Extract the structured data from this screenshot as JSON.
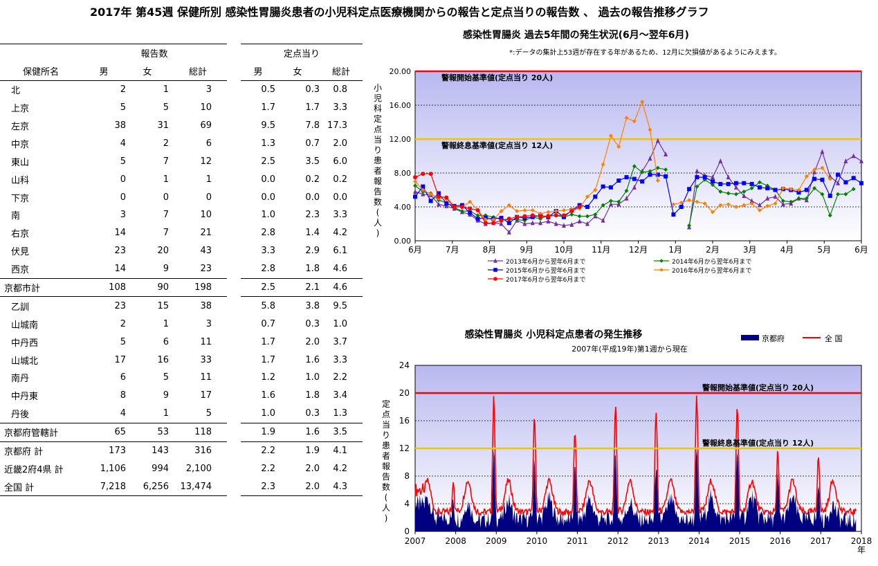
{
  "page_title": "2017年 第45週 保健所別 感染性胃腸炎患者の小児科定点医療機関からの報告と定点当りの報告数 、 過去の報告推移グラフ",
  "table": {
    "group_headers": [
      "報告数",
      "定点当り"
    ],
    "columns": [
      "保健所名",
      "男",
      "女",
      "総計",
      "男",
      "女",
      "総計"
    ],
    "rows": [
      {
        "name": "北",
        "indent": true,
        "vals": [
          "2",
          "1",
          "3",
          "0.5",
          "0.3",
          "0.8"
        ]
      },
      {
        "name": "上京",
        "indent": true,
        "vals": [
          "5",
          "5",
          "10",
          "1.7",
          "1.7",
          "3.3"
        ]
      },
      {
        "name": "左京",
        "indent": true,
        "vals": [
          "38",
          "31",
          "69",
          "9.5",
          "7.8",
          "17.3"
        ]
      },
      {
        "name": "中京",
        "indent": true,
        "vals": [
          "4",
          "2",
          "6",
          "1.3",
          "0.7",
          "2.0"
        ]
      },
      {
        "name": "東山",
        "indent": true,
        "vals": [
          "5",
          "7",
          "12",
          "2.5",
          "3.5",
          "6.0"
        ]
      },
      {
        "name": "山科",
        "indent": true,
        "vals": [
          "0",
          "1",
          "1",
          "0.0",
          "0.2",
          "0.2"
        ]
      },
      {
        "name": "下京",
        "indent": true,
        "vals": [
          "0",
          "0",
          "0",
          "0.0",
          "0.0",
          "0.0"
        ]
      },
      {
        "name": "南",
        "indent": true,
        "vals": [
          "3",
          "7",
          "10",
          "1.0",
          "2.3",
          "3.3"
        ]
      },
      {
        "name": "右京",
        "indent": true,
        "vals": [
          "14",
          "7",
          "21",
          "2.8",
          "1.4",
          "4.2"
        ]
      },
      {
        "name": "伏見",
        "indent": true,
        "vals": [
          "23",
          "20",
          "43",
          "3.3",
          "2.9",
          "6.1"
        ]
      },
      {
        "name": "西京",
        "indent": true,
        "vals": [
          "14",
          "9",
          "23",
          "2.8",
          "1.8",
          "4.6"
        ]
      },
      {
        "name": "京都市計",
        "indent": false,
        "sep": true,
        "vals": [
          "108",
          "90",
          "198",
          "2.5",
          "2.1",
          "4.6"
        ]
      },
      {
        "name": "乙訓",
        "indent": true,
        "sep": true,
        "vals": [
          "23",
          "15",
          "38",
          "5.8",
          "3.8",
          "9.5"
        ]
      },
      {
        "name": "山城南",
        "indent": true,
        "vals": [
          "2",
          "1",
          "3",
          "0.7",
          "0.3",
          "1.0"
        ]
      },
      {
        "name": "中丹西",
        "indent": true,
        "vals": [
          "5",
          "6",
          "11",
          "1.7",
          "2.0",
          "3.7"
        ]
      },
      {
        "name": "山城北",
        "indent": true,
        "vals": [
          "17",
          "16",
          "33",
          "1.7",
          "1.6",
          "3.3"
        ]
      },
      {
        "name": "南丹",
        "indent": true,
        "vals": [
          "6",
          "5",
          "11",
          "1.2",
          "1.0",
          "2.2"
        ]
      },
      {
        "name": "中丹東",
        "indent": true,
        "vals": [
          "8",
          "9",
          "17",
          "1.6",
          "1.8",
          "3.4"
        ]
      },
      {
        "name": "丹後",
        "indent": true,
        "vals": [
          "4",
          "1",
          "5",
          "1.0",
          "0.3",
          "1.3"
        ]
      },
      {
        "name": "京都府管轄計",
        "indent": false,
        "sep": true,
        "vals": [
          "65",
          "53",
          "118",
          "1.9",
          "1.6",
          "3.5"
        ]
      },
      {
        "name": "京都府 計",
        "indent": false,
        "sep": true,
        "vals": [
          "173",
          "143",
          "316",
          "2.2",
          "1.9",
          "4.1"
        ]
      },
      {
        "name": "近畿2府4県 計",
        "indent": false,
        "vals": [
          "1,106",
          "994",
          "2,100",
          "2.2",
          "2.0",
          "4.2"
        ]
      },
      {
        "name": "全国 計",
        "indent": false,
        "vals": [
          "7,218",
          "6,256",
          "13,474",
          "2.3",
          "2.0",
          "4.3"
        ]
      }
    ]
  },
  "chart_data": [
    {
      "type": "line",
      "title": "感染性胃腸炎 過去5年間の発生状況(6月～翌年6月)",
      "note": "*:データの集計上53週が存在する年があるため、12月に欠損値があるようにみえます。",
      "ylabel": "小児科定点当り患者報告数(人)",
      "ylim": [
        0,
        20
      ],
      "yticks": [
        "0.00",
        "4.00",
        "8.00",
        "12.00",
        "16.00",
        "20.00"
      ],
      "x_tick_labels": [
        "6月",
        "7月",
        "8月",
        "9月",
        "10月",
        "11月",
        "12月",
        "1月",
        "2月",
        "3月",
        "4月",
        "5月",
        "6月"
      ],
      "threshold_lines": [
        {
          "label": "警報開始基準値(定点当り 20人)",
          "value": 20,
          "color": "#ff0000"
        },
        {
          "label": "警報終息基準値(定点当り 12人)",
          "value": 12,
          "color": "#e8c800"
        }
      ],
      "series": [
        {
          "name": "2013年6月から翌年6月まで",
          "color": "#7030a0",
          "marker": "triangle",
          "values": [
            5.8,
            5.5,
            5.4,
            4.3,
            4.1,
            3.8,
            3.4,
            3.1,
            2.4,
            2.0,
            2.1,
            2.0,
            1.0,
            2.4,
            2.0,
            2.1,
            2.1,
            2.3,
            2.0,
            1.8,
            1.9,
            2.3,
            2.0,
            2.9,
            2.4,
            4.3,
            4.3,
            5.0,
            6.3,
            8.2,
            9.7,
            11.8,
            10.2,
            null,
            null,
            1.6,
            8.2,
            7.7,
            7.5,
            9.4,
            7.5,
            6.3,
            5.3,
            4.7,
            4.2,
            5.0,
            5.2,
            4.3,
            4.4,
            5.0,
            4.8,
            8.1,
            10.5,
            7.6,
            6.8,
            9.4,
            10.0,
            9.4
          ]
        },
        {
          "name": "2014年6月から翌年6月まで",
          "color": "#008000",
          "marker": "diamond",
          "values": [
            6.5,
            5.8,
            5.6,
            4.8,
            4.5,
            3.9,
            3.5,
            3.5,
            3.0,
            3.0,
            2.8,
            2.5,
            2.5,
            2.5,
            2.4,
            2.8,
            2.6,
            3.0,
            3.0,
            2.8,
            3.1,
            2.9,
            2.9,
            3.1,
            4.2,
            4.7,
            4.6,
            5.9,
            8.8,
            8.1,
            8.2,
            8.6,
            8.4,
            null,
            null,
            1.8,
            6.4,
            7.2,
            6.6,
            5.8,
            5.6,
            5.5,
            5.8,
            6.2,
            6.9,
            6.5,
            6.0,
            4.7,
            4.6,
            5.0,
            5.0,
            6.2,
            5.5,
            3.0,
            5.5,
            5.5,
            6.1
          ]
        },
        {
          "name": "2015年6月から翌年6月まで",
          "color": "#0000ff",
          "marker": "square",
          "values": [
            5.2,
            6.4,
            4.7,
            5.6,
            4.4,
            4.1,
            4.2,
            3.3,
            2.6,
            2.7,
            2.6,
            2.7,
            2.1,
            2.8,
            2.7,
            2.8,
            3.0,
            2.8,
            3.5,
            2.8,
            3.6,
            4.2,
            4.0,
            5.2,
            6.4,
            6.3,
            7.1,
            7.5,
            7.3,
            7.0,
            7.8,
            7.8,
            7.6,
            3.1,
            4.0,
            6.1,
            7.5,
            7.5,
            7.0,
            6.7,
            6.7,
            6.8,
            6.8,
            6.7,
            6.3,
            6.2,
            6.0,
            6.1,
            6.0,
            5.7,
            6.0,
            7.3,
            7.2,
            5.3,
            7.8,
            6.9,
            7.4,
            6.8
          ]
        },
        {
          "name": "2016年6月から翌年6月まで",
          "color": "#ff8000",
          "marker": "diamond",
          "values": [
            7.0,
            6.0,
            5.5,
            5.0,
            4.9,
            4.0,
            4.0,
            4.6,
            3.6,
            2.5,
            2.5,
            3.5,
            4.2,
            3.5,
            3.6,
            3.6,
            3.2,
            3.4,
            3.5,
            3.6,
            3.7,
            3.8,
            5.2,
            6.0,
            9.0,
            12.4,
            11.1,
            14.5,
            14.1,
            16.4,
            13.1,
            7.1,
            null,
            4.3,
            4.5,
            4.8,
            4.6,
            4.4,
            3.4,
            4.2,
            4.3,
            4.0,
            4.2,
            4.4,
            3.6,
            4.1,
            4.4,
            6.2,
            6.1,
            6.0,
            7.6,
            8.4,
            8.6,
            7.3
          ]
        },
        {
          "name": "2017年6月から翌年6月まで",
          "color": "#ff0000",
          "marker": "circle",
          "values": [
            7.5,
            7.9,
            7.9,
            5.2,
            5.1,
            4.0,
            4.0,
            3.8,
            3.6,
            2.1,
            2.1,
            2.4,
            2.6,
            2.8,
            2.9,
            3.0,
            2.9,
            2.9,
            3.0,
            3.0,
            3.5,
            4.0
          ]
        }
      ]
    },
    {
      "type": "area",
      "title": "感染性胃腸炎 小児科定点患者の発生推移",
      "subtitle": "2007年(平成19年)第1週から現在",
      "ylabel": "定点当り患者報告数(人)",
      "ylim": [
        0,
        24
      ],
      "yticks": [
        "0",
        "4",
        "8",
        "12",
        "16",
        "20",
        "24"
      ],
      "x_tick_labels": [
        "2007",
        "2008",
        "2009",
        "2010",
        "2011",
        "2012",
        "2013",
        "2014",
        "2015",
        "2016",
        "2017",
        "2018"
      ],
      "x_unit": "年",
      "legend": [
        {
          "name": "京都府",
          "color": "#000080"
        },
        {
          "name": "全 国",
          "color": "#ff0000"
        }
      ],
      "threshold_lines": [
        {
          "label": "警報開始基準値(定点当り 20人)",
          "value": 20,
          "color": "#ff0000"
        },
        {
          "label": "警報終息基準値(定点当り 12人)",
          "value": 12,
          "color": "#e8c800"
        }
      ],
      "series_profiles": {
        "national_peaks": [
          7.5,
          19.3,
          16.5,
          14.5,
          18.5,
          17.2,
          19.7,
          18.2,
          11.7,
          11.3,
          21.0,
          4.3
        ],
        "kyoto_peaks": [
          6.5,
          14.8,
          13.0,
          12.0,
          15.0,
          13.0,
          15.2,
          16.0,
          10.5,
          9.5,
          15.0,
          3.5
        ]
      }
    }
  ]
}
